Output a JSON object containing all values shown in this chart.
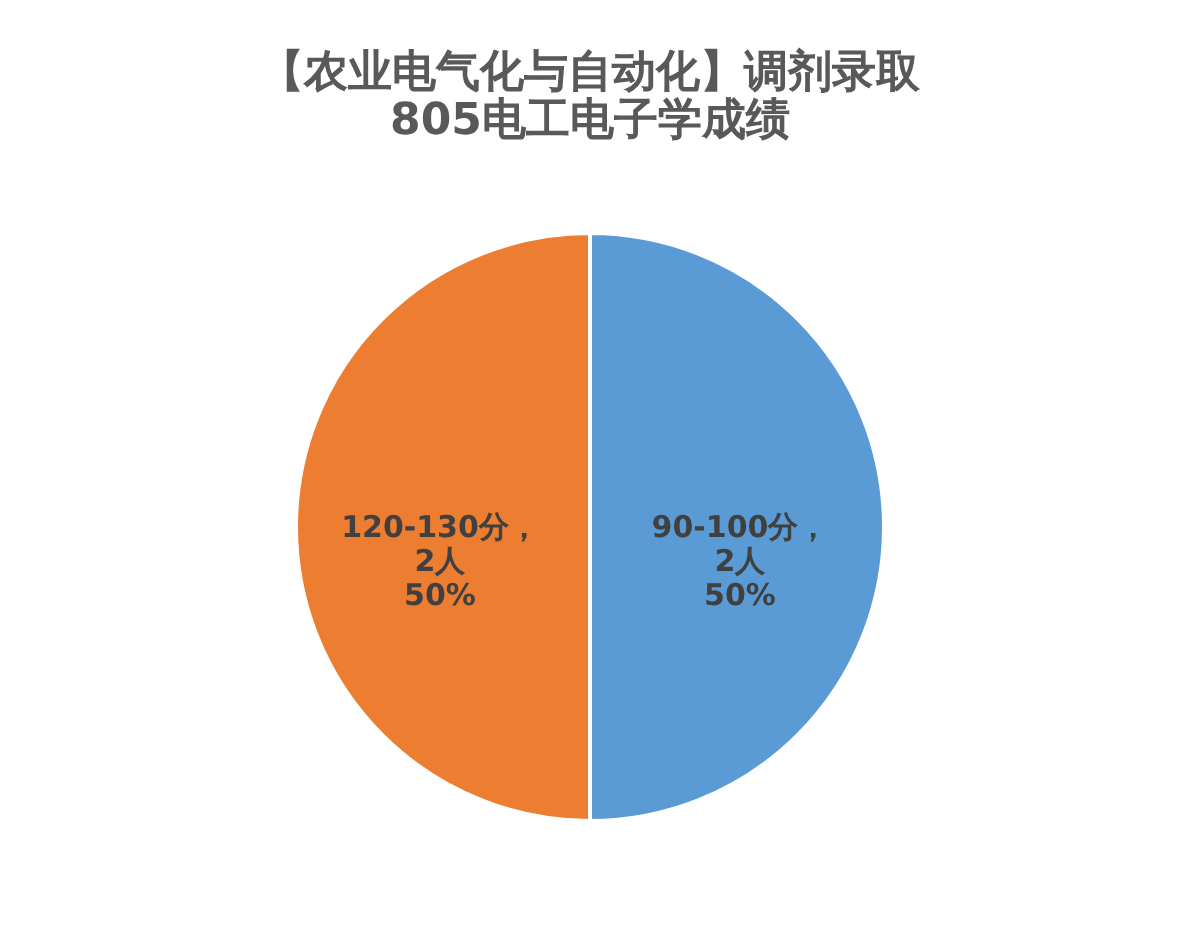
{
  "chart_data": {
    "type": "pie",
    "title": [
      "【农业电气化与自动化】调剂录取",
      "805电工电子学成绩"
    ],
    "categories": [
      "90-100分",
      "120-130分"
    ],
    "values": [
      2,
      2
    ],
    "colors": [
      "#5b9bd5",
      "#ed7d31"
    ],
    "value_labels": [
      "，\n2人\n50%",
      "，\n2人\n50%"
    ],
    "legend": false
  }
}
